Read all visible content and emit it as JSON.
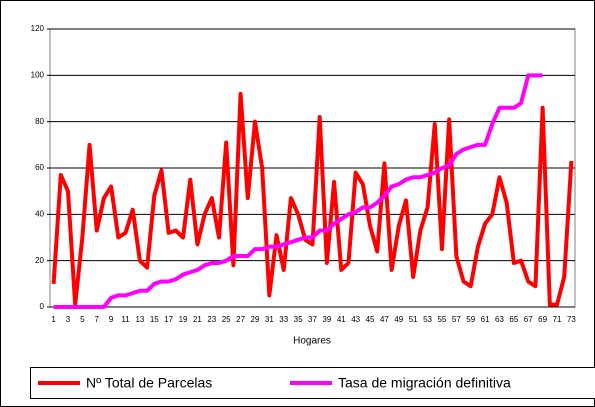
{
  "chart_data": {
    "type": "line",
    "x_label": "Hogares",
    "categories": [
      "1",
      null,
      "3",
      null,
      "5",
      null,
      "7",
      null,
      "9",
      null,
      "11",
      null,
      "13",
      null,
      "15",
      null,
      "17",
      null,
      "19",
      null,
      "21",
      null,
      "23",
      null,
      "25",
      null,
      "27",
      null,
      "29",
      null,
      "31",
      null,
      "33",
      null,
      "35",
      null,
      "37",
      null,
      "39",
      null,
      "41",
      null,
      "43",
      null,
      "45",
      null,
      "47",
      null,
      "49",
      null,
      "51",
      null,
      "53",
      null,
      "55",
      null,
      "57",
      null,
      "59",
      null,
      "61",
      null,
      "63",
      null,
      "65",
      null,
      "67",
      null,
      "69",
      null,
      "71",
      null,
      "73"
    ],
    "series": [
      {
        "name": "Nº Total de Parcelas",
        "color": "#ff0000",
        "values": [
          10,
          57,
          50,
          1,
          30,
          70,
          33,
          47,
          52,
          30,
          32,
          42,
          20,
          17,
          48,
          59,
          32,
          33,
          30,
          55,
          27,
          40,
          47,
          30,
          71,
          18,
          92,
          47,
          80,
          60,
          5,
          31,
          16,
          47,
          40,
          29,
          27,
          82,
          19,
          54,
          16,
          19,
          58,
          53,
          35,
          24,
          62,
          16,
          35,
          46,
          13,
          33,
          43,
          79,
          25,
          81,
          22,
          11,
          9,
          26,
          36,
          40,
          56,
          45,
          19,
          20,
          11,
          9,
          86,
          1,
          1,
          13,
          63
        ]
      },
      {
        "name": "Tasa de migración definitiva",
        "color": "#ff00ff",
        "values": [
          0,
          0,
          0,
          0,
          0,
          0,
          0,
          0,
          4,
          5,
          5,
          6,
          7,
          7,
          10,
          11,
          11,
          12,
          14,
          15,
          16,
          18,
          19,
          19,
          20,
          22,
          22,
          22,
          25,
          25,
          26,
          26,
          27,
          28,
          29,
          30,
          30,
          33,
          33,
          36,
          38,
          40,
          41,
          43,
          43,
          45,
          48,
          52,
          53,
          55,
          56,
          56,
          57,
          58,
          60,
          61,
          66,
          68,
          69,
          70,
          70,
          79,
          86,
          86,
          86,
          88,
          100,
          100,
          100,
          null,
          null,
          null,
          null
        ]
      }
    ],
    "ylim": [
      0,
      120
    ],
    "yticks": [
      0,
      20,
      40,
      60,
      80,
      100,
      120
    ],
    "grid": true,
    "legend": "bottom"
  }
}
